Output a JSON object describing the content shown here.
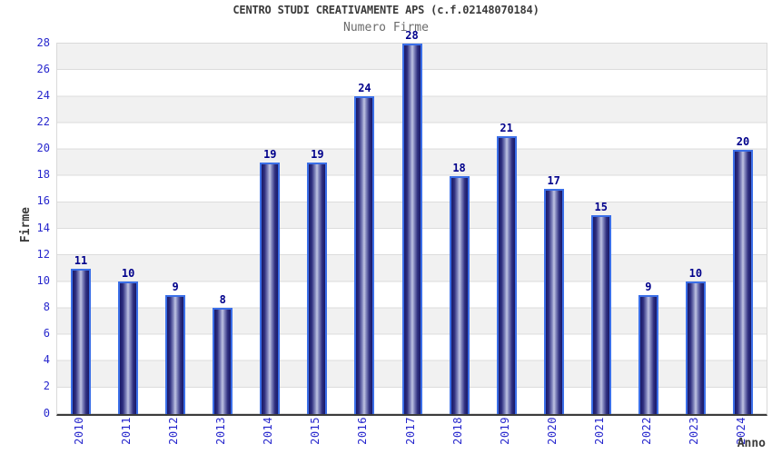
{
  "chart_data": {
    "type": "bar",
    "title": "CENTRO STUDI CREATIVAMENTE APS (c.f.02148070184)",
    "subtitle": "Numero Firme",
    "xlabel": "Anno",
    "ylabel": "Firme",
    "categories": [
      "2010",
      "2011",
      "2012",
      "2013",
      "2014",
      "2015",
      "2016",
      "2017",
      "2018",
      "2019",
      "2020",
      "2021",
      "2022",
      "2023",
      "2024"
    ],
    "values": [
      11,
      10,
      9,
      8,
      19,
      19,
      24,
      28,
      18,
      21,
      17,
      15,
      9,
      10,
      20
    ],
    "ylim": [
      0,
      28
    ],
    "ytick_step": 2,
    "yticks": [
      0,
      2,
      4,
      6,
      8,
      10,
      12,
      14,
      16,
      18,
      20,
      22,
      24,
      26,
      28
    ],
    "grid": "horizontal-bands-alternating",
    "legend": "none"
  },
  "colors": {
    "bar_dark": "#191968",
    "bar_light_center": "#c0c4e2",
    "bar_border": "#3b6fe8",
    "bar_value_label": "#00008b",
    "axis_tick_label": "#2727cd",
    "title_text": "#3b3b3b",
    "subtitle_text": "#6b6b6b",
    "band_gray": "#f1f1f1",
    "band_white": "#ffffff",
    "gridline": "#dcdcdc",
    "axis_line": "#3c3c3c"
  }
}
